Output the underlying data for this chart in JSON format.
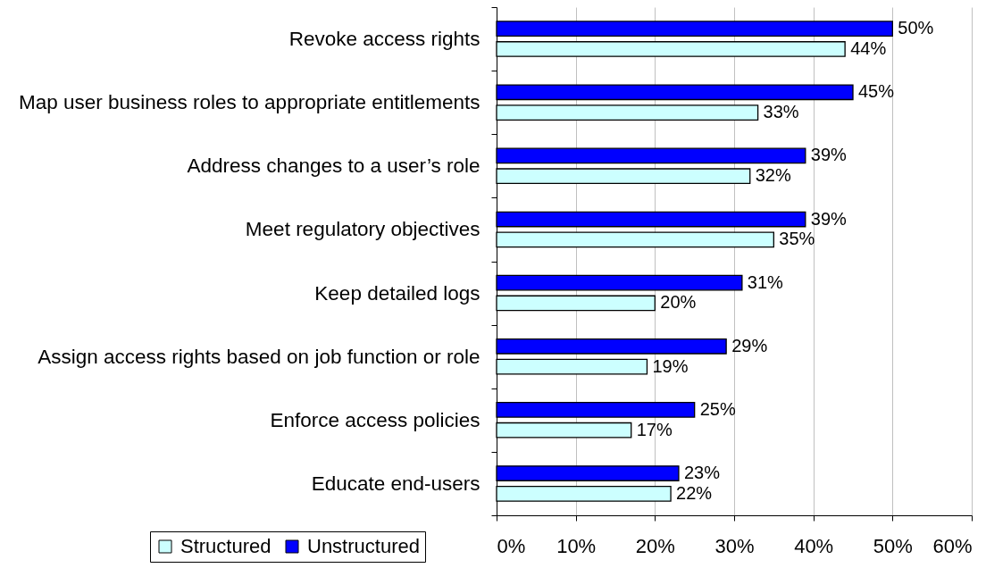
{
  "chart_data": {
    "type": "bar",
    "orientation": "horizontal",
    "categories": [
      "Revoke access rights",
      "Map user business roles to appropriate entitlements",
      "Address changes to a user’s role",
      "Meet regulatory objectives",
      "Keep detailed logs",
      "Assign access rights based on job function or role",
      "Enforce access policies",
      "Educate end-users"
    ],
    "series": [
      {
        "name": "Structured",
        "color": "#ccffff",
        "values": [
          44,
          33,
          32,
          35,
          20,
          19,
          17,
          22
        ],
        "value_labels": [
          "44%",
          "33%",
          "32%",
          "35%",
          "20%",
          "19%",
          "17%",
          "22%"
        ]
      },
      {
        "name": "Unstructured",
        "color": "#0000ff",
        "values": [
          50,
          45,
          39,
          39,
          31,
          29,
          25,
          23
        ],
        "value_labels": [
          "50%",
          "45%",
          "39%",
          "39%",
          "31%",
          "29%",
          "25%",
          "23%"
        ]
      }
    ],
    "xlim": [
      0,
      60
    ],
    "xticks": [
      {
        "value": 0,
        "label": "0%"
      },
      {
        "value": 10,
        "label": "10%"
      },
      {
        "value": 20,
        "label": "20%"
      },
      {
        "value": 30,
        "label": "30%"
      },
      {
        "value": 40,
        "label": "40%"
      },
      {
        "value": 50,
        "label": "50%"
      },
      {
        "value": 60,
        "label": "60%"
      }
    ],
    "grid": "x",
    "legend": "bottom left"
  }
}
